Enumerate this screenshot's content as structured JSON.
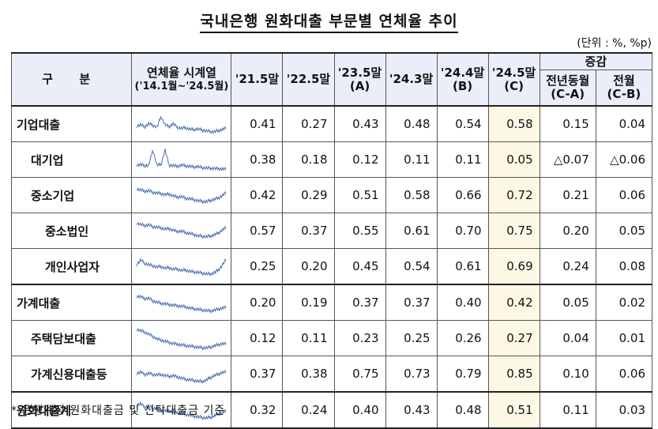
{
  "title": "국내은행 원화대출 부문별 연체율 추이",
  "unit": "(단위 : %, %p)",
  "header": {
    "gubun": "구  분",
    "trend_line1": "연체율 시계열",
    "trend_line2": "('14.1월~'24.5월)",
    "cols": [
      {
        "line1": "'21.5말",
        "line2": ""
      },
      {
        "line1": "'22.5말",
        "line2": ""
      },
      {
        "line1": "'23.5말",
        "line2": "(A)"
      },
      {
        "line1": "'24.3말",
        "line2": ""
      },
      {
        "line1": "'24.4말",
        "line2": "(B)"
      },
      {
        "line1": "'24.5말",
        "line2": "(C)"
      }
    ],
    "change_group": "증감",
    "change_cols": [
      {
        "line1": "전년동월",
        "line2": "(C-A)"
      },
      {
        "line1": "전월",
        "line2": "(C-B)"
      }
    ]
  },
  "rows": [
    {
      "label": "기업대출",
      "level": 0,
      "values": [
        "0.41",
        "0.27",
        "0.43",
        "0.48",
        "0.54",
        "0.58",
        "0.15",
        "0.04"
      ],
      "spark": "corp"
    },
    {
      "label": "대기업",
      "level": 1,
      "values": [
        "0.38",
        "0.18",
        "0.12",
        "0.11",
        "0.11",
        "0.05",
        "△0.07",
        "△0.06"
      ],
      "spark": "large"
    },
    {
      "label": "중소기업",
      "level": 1,
      "values": [
        "0.42",
        "0.29",
        "0.51",
        "0.58",
        "0.66",
        "0.72",
        "0.21",
        "0.06"
      ],
      "spark": "sme"
    },
    {
      "label": "중소법인",
      "level": 2,
      "values": [
        "0.57",
        "0.37",
        "0.55",
        "0.61",
        "0.70",
        "0.75",
        "0.20",
        "0.05"
      ],
      "spark": "smecorp"
    },
    {
      "label": "개인사업자",
      "level": 2,
      "values": [
        "0.25",
        "0.20",
        "0.45",
        "0.54",
        "0.61",
        "0.69",
        "0.24",
        "0.08"
      ],
      "spark": "soho"
    },
    {
      "label": "가계대출",
      "level": 0,
      "values": [
        "0.20",
        "0.19",
        "0.37",
        "0.37",
        "0.40",
        "0.42",
        "0.05",
        "0.02"
      ],
      "spark": "household"
    },
    {
      "label": "주택담보대출",
      "level": 1,
      "values": [
        "0.12",
        "0.11",
        "0.23",
        "0.25",
        "0.26",
        "0.27",
        "0.04",
        "0.01"
      ],
      "spark": "mortgage"
    },
    {
      "label": "가계신용대출등",
      "level": 1,
      "values": [
        "0.37",
        "0.38",
        "0.75",
        "0.73",
        "0.79",
        "0.85",
        "0.10",
        "0.06"
      ],
      "spark": "credit"
    },
    {
      "label": "원화대출계",
      "level": 0,
      "values": [
        "0.32",
        "0.24",
        "0.40",
        "0.43",
        "0.48",
        "0.51",
        "0.11",
        "0.03"
      ],
      "spark": "total"
    }
  ],
  "footnote": "* 은행계정 원화대출금 및 신탁대출금 기준",
  "colors": {
    "header_bg": "#e9eef8",
    "highlight_col": "#fdf7e6",
    "sparkline": "#4a6fb5"
  }
}
